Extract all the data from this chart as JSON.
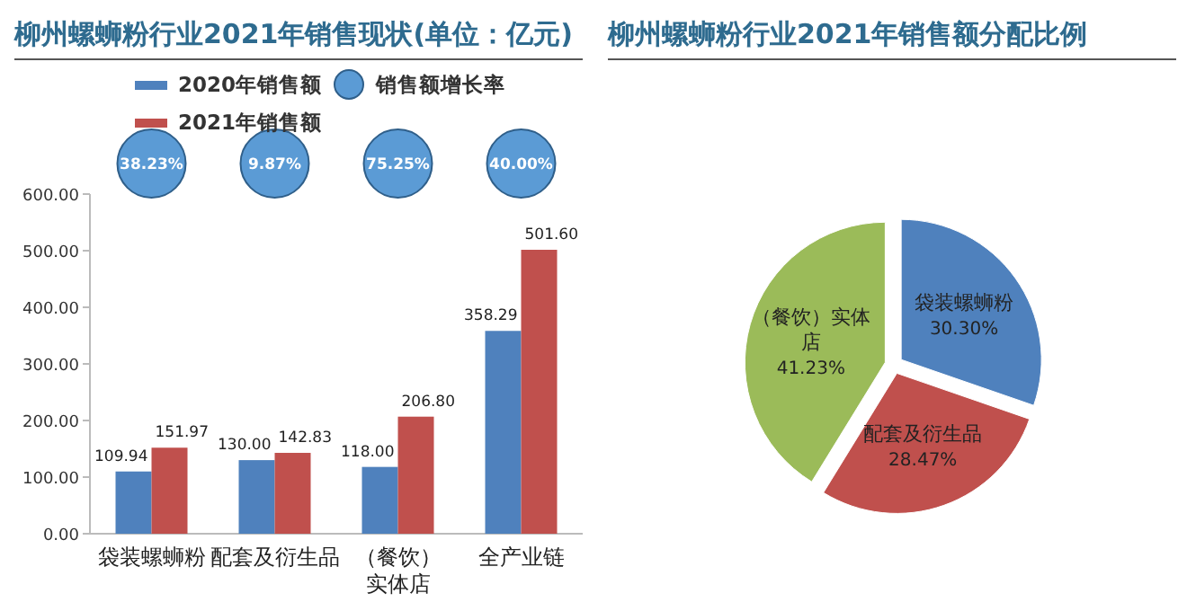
{
  "chart_data": [
    {
      "type": "bar",
      "title": "柳州螺蛳粉行业2021年销售现状(单位：亿元)",
      "categories": [
        "袋装螺蛳粉",
        "配套及衍生品",
        "（餐饮）实体店",
        "全产业链"
      ],
      "ylim": [
        0,
        600
      ],
      "yticks": [
        {
          "value": 0,
          "label": "0.00"
        },
        {
          "value": 100,
          "label": "100.00"
        },
        {
          "value": 200,
          "label": "200.00"
        },
        {
          "value": 300,
          "label": "300.00"
        },
        {
          "value": 400,
          "label": "400.00"
        },
        {
          "value": 500,
          "label": "500.00"
        },
        {
          "value": 600,
          "label": "600.00"
        }
      ],
      "legend": "top",
      "series": [
        {
          "name": "2020年销售额",
          "color": "#4f81bd",
          "values": [
            109.94,
            130,
            118,
            358.29
          ],
          "value_labels": [
            "109.94",
            "130.00",
            "118.00",
            "358.29"
          ]
        },
        {
          "name": "2021年销售额",
          "color": "#c0504d",
          "values": [
            151.97,
            142.83,
            206.8,
            501.6
          ],
          "value_labels": [
            "151.97",
            "142.83",
            "206.80",
            "501.60"
          ]
        },
        {
          "name": "销售额增长率",
          "type": "scatter",
          "marker": "circle",
          "color": "#5b9bd5",
          "values": [
            null,
            null,
            null,
            null
          ],
          "value_labels": [
            "38.23%",
            "9.87%",
            "75.25%",
            "40.00%"
          ]
        }
      ]
    },
    {
      "type": "pie",
      "title": "柳州螺蛳粉行业2021年销售额分配比例",
      "categories": [
        "袋装螺蛳粉",
        "配套及衍生品",
        "（餐饮）实体店"
      ],
      "values": [
        30.3,
        28.47,
        41.23
      ],
      "colors": [
        "#4f81bd",
        "#c0504d",
        "#9bbb59"
      ],
      "value_labels": [
        "30.30%",
        "28.47%",
        "41.23%"
      ]
    }
  ]
}
